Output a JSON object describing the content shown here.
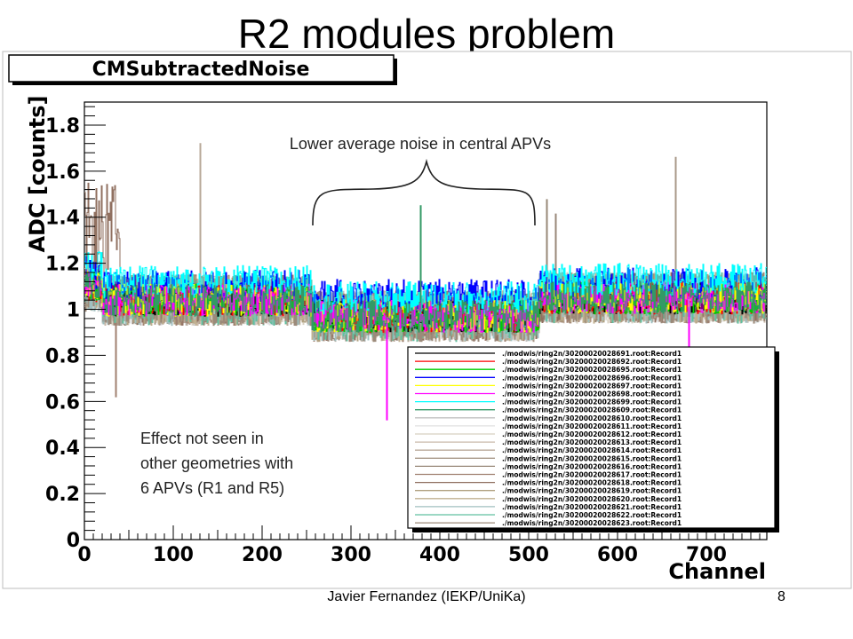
{
  "slide": {
    "title": "R2 modules problem",
    "footer_author": "Javier Fernandez (IEKP/UniKa)",
    "page_number": "8"
  },
  "chart_data": {
    "type": "line",
    "title": "CMSubtractedNoise",
    "xlabel": "Channel",
    "ylabel": "ADC [counts]",
    "xlim": [
      0,
      768
    ],
    "ylim": [
      0,
      1.9
    ],
    "x_ticks": [
      "0",
      "100",
      "200",
      "300",
      "400",
      "500",
      "600",
      "700"
    ],
    "y_ticks": [
      "0",
      "0.2",
      "0.4",
      "0.6",
      "0.8",
      "1",
      "1.2",
      "1.4",
      "1.6",
      "1.8"
    ],
    "grid": false,
    "legend_position": "bottom-right",
    "series": [
      {
        "name": "./modwis/ring2n/30200020028691.root:Record1",
        "color": "#000000"
      },
      {
        "name": "./modwis/ring2n/30200020028692.root:Record1",
        "color": "#ff0000"
      },
      {
        "name": "./modwis/ring2n/30200020028695.root:Record1",
        "color": "#00cc00"
      },
      {
        "name": "./modwis/ring2n/30200020028696.root:Record1",
        "color": "#0000ff"
      },
      {
        "name": "./modwis/ring2n/30200020028697.root:Record1",
        "color": "#ffff00"
      },
      {
        "name": "./modwis/ring2n/30200020028698.root:Record1",
        "color": "#ff00ff"
      },
      {
        "name": "./modwis/ring2n/30200020028699.root:Record1",
        "color": "#00ffff"
      },
      {
        "name": "./modwis/ring2n/30200020028609.root:Record1",
        "color": "#339966"
      },
      {
        "name": "./modwis/ring2n/30200020028610.root:Record1",
        "color": "#c0c0c0"
      },
      {
        "name": "./modwis/ring2n/30200020028611.root:Record1",
        "color": "#e0e0e0"
      },
      {
        "name": "./modwis/ring2n/30200020028612.root:Record1",
        "color": "#d8d0c0"
      },
      {
        "name": "./modwis/ring2n/30200020028613.root:Record1",
        "color": "#c8b8a8"
      },
      {
        "name": "./modwis/ring2n/30200020028614.root:Record1",
        "color": "#b8a898"
      },
      {
        "name": "./modwis/ring2n/30200020028615.root:Record1",
        "color": "#a89888"
      },
      {
        "name": "./modwis/ring2n/30200020028616.root:Record1",
        "color": "#988878"
      },
      {
        "name": "./modwis/ring2n/30200020028617.root:Record1",
        "color": "#a08070"
      },
      {
        "name": "./modwis/ring2n/30200020028618.root:Record1",
        "color": "#907060"
      },
      {
        "name": "./modwis/ring2n/30200020028619.root:Record1",
        "color": "#b0a080"
      },
      {
        "name": "./modwis/ring2n/30200020028620.root:Record1",
        "color": "#c0b090"
      },
      {
        "name": "./modwis/ring2n/30200020028621.root:Record1",
        "color": "#a0c0c0"
      },
      {
        "name": "./modwis/ring2n/30200020028622.root:Record1",
        "color": "#60c0a0"
      },
      {
        "name": "./modwis/ring2n/30200020028623.root:Record1",
        "color": "#9c8a7a"
      }
    ],
    "annotations": [
      {
        "text": "Lower average noise in central APVs",
        "x_range": [
          256,
          512
        ]
      },
      {
        "lines": [
          "Effect not seen in",
          "other geometries with",
          "6 APVs (R1 and R5)"
        ]
      }
    ]
  }
}
